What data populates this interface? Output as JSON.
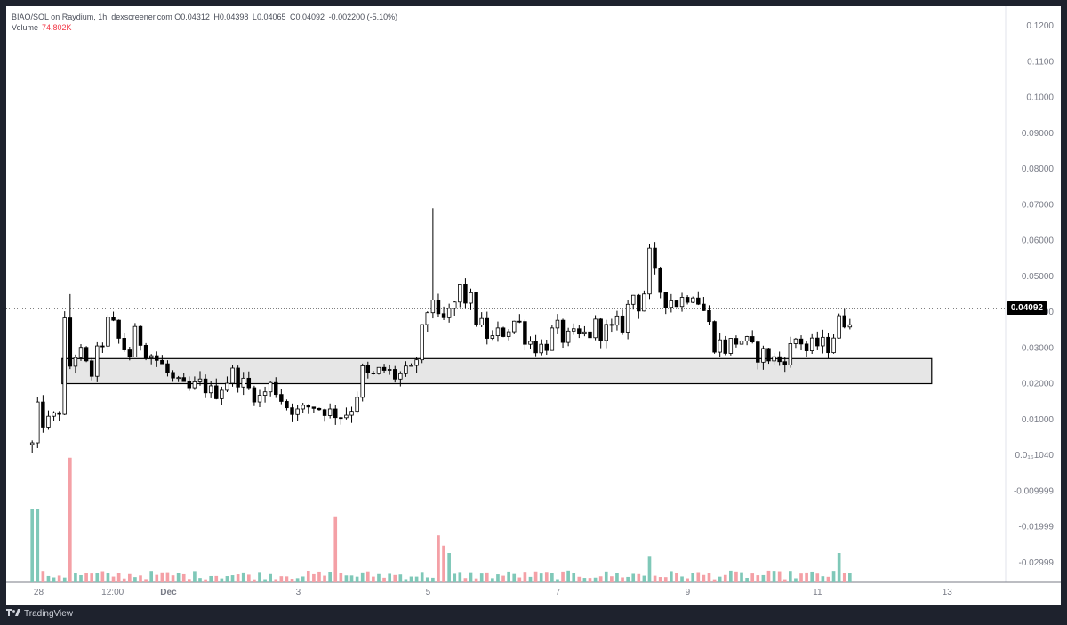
{
  "legend": {
    "title": "BIAO/SOL on Raydium, 1h, dexscreener.com",
    "open_key": "O",
    "open": "0.04312",
    "high_key": "H",
    "high": "0.04398",
    "low_key": "L",
    "low": "0.04065",
    "close_key": "C",
    "close": "0.04092",
    "change": "-0.002200 (-5.10%)",
    "volume_label": "Volume",
    "volume_value": "74.802K"
  },
  "footer": {
    "brand": "TradingView"
  },
  "colors": {
    "up": "#ffffff",
    "down": "#000000",
    "vol_up": "#7fc8b8",
    "vol_down": "#f4a0a6",
    "zone_fill": "#e6e6e6",
    "zone_stroke": "#000000",
    "axis_text": "#787b86"
  },
  "chart_data": {
    "type": "candlestick",
    "price_axis_labels": [
      "0.1200",
      "0.1100",
      "0.1000",
      "0.09000",
      "0.08000",
      "0.07000",
      "0.06000",
      "0.05000",
      "0.04000",
      "0.03000",
      "0.02000",
      "0.01000",
      "0.0₁₆1040",
      "-0.009999",
      "-0.01999",
      "-0.02999"
    ],
    "price_axis_values": [
      0.12,
      0.11,
      0.1,
      0.09,
      0.08,
      0.07,
      0.06,
      0.05,
      0.04,
      0.03,
      0.02,
      0.01,
      0.0,
      -0.01,
      -0.02,
      -0.03
    ],
    "ylim": [
      -0.034,
      0.125
    ],
    "time_axis_labels": [
      "28",
      "12:00",
      "Dec",
      "3",
      "5",
      "7",
      "9",
      "11",
      "13"
    ],
    "time_axis_days": [
      0.05,
      0.62,
      1.05,
      2.05,
      3.05,
      4.05,
      5.05,
      6.05,
      7.05
    ],
    "xlim": [
      -0.2,
      7.5
    ],
    "last_price": 0.04092,
    "last_price_label": "0.04092",
    "zone": {
      "x_start": 0.23,
      "x_end": 6.93,
      "y_low": 0.02,
      "y_high": 0.027
    },
    "close_path": [
      [
        0.0,
        0.003
      ],
      [
        0.03,
        0.014
      ],
      [
        0.08,
        0.009
      ],
      [
        0.15,
        0.01
      ],
      [
        0.22,
        0.013
      ],
      [
        0.25,
        0.036
      ],
      [
        0.28,
        0.024
      ],
      [
        0.35,
        0.03
      ],
      [
        0.45,
        0.022
      ],
      [
        0.52,
        0.03
      ],
      [
        0.6,
        0.038
      ],
      [
        0.65,
        0.033
      ],
      [
        0.75,
        0.028
      ],
      [
        0.8,
        0.034
      ],
      [
        0.9,
        0.029
      ],
      [
        1.0,
        0.025
      ],
      [
        1.1,
        0.02
      ],
      [
        1.2,
        0.018
      ],
      [
        1.3,
        0.02
      ],
      [
        1.4,
        0.017
      ],
      [
        1.55,
        0.023
      ],
      [
        1.65,
        0.019
      ],
      [
        1.75,
        0.016
      ],
      [
        1.85,
        0.02
      ],
      [
        1.95,
        0.014
      ],
      [
        2.05,
        0.012
      ],
      [
        2.15,
        0.014
      ],
      [
        2.3,
        0.012
      ],
      [
        2.4,
        0.011
      ],
      [
        2.48,
        0.014
      ],
      [
        2.55,
        0.024
      ],
      [
        2.6,
        0.021
      ],
      [
        2.7,
        0.024
      ],
      [
        2.8,
        0.022
      ],
      [
        2.92,
        0.023
      ],
      [
        2.97,
        0.028
      ],
      [
        3.02,
        0.036
      ],
      [
        3.08,
        0.047
      ],
      [
        3.12,
        0.036
      ],
      [
        3.2,
        0.038
      ],
      [
        3.3,
        0.046
      ],
      [
        3.38,
        0.042
      ],
      [
        3.45,
        0.036
      ],
      [
        3.55,
        0.032
      ],
      [
        3.63,
        0.035
      ],
      [
        3.73,
        0.038
      ],
      [
        3.83,
        0.032
      ],
      [
        3.93,
        0.03
      ],
      [
        4.03,
        0.035
      ],
      [
        4.13,
        0.032
      ],
      [
        4.25,
        0.033
      ],
      [
        4.35,
        0.036
      ],
      [
        4.45,
        0.034
      ],
      [
        4.55,
        0.037
      ],
      [
        4.63,
        0.045
      ],
      [
        4.7,
        0.042
      ],
      [
        4.75,
        0.055
      ],
      [
        4.8,
        0.048
      ],
      [
        4.9,
        0.044
      ],
      [
        5.0,
        0.043
      ],
      [
        5.08,
        0.048
      ],
      [
        5.18,
        0.04
      ],
      [
        5.25,
        0.032
      ],
      [
        5.35,
        0.03
      ],
      [
        5.45,
        0.033
      ],
      [
        5.55,
        0.029
      ],
      [
        5.65,
        0.028
      ],
      [
        5.75,
        0.026
      ],
      [
        5.85,
        0.03
      ],
      [
        5.9,
        0.034
      ],
      [
        5.97,
        0.029
      ],
      [
        6.05,
        0.031
      ],
      [
        6.12,
        0.03
      ],
      [
        6.2,
        0.036
      ],
      [
        6.3,
        0.04
      ]
    ],
    "volume_spikes": [
      [
        0.02,
        0.5
      ],
      [
        0.28,
        0.45
      ],
      [
        0.3,
        0.85
      ],
      [
        2.33,
        0.45
      ],
      [
        3.12,
        0.32
      ],
      [
        3.17,
        0.25
      ],
      [
        3.22,
        0.2
      ],
      [
        4.75,
        0.18
      ],
      [
        6.2,
        0.2
      ]
    ]
  }
}
